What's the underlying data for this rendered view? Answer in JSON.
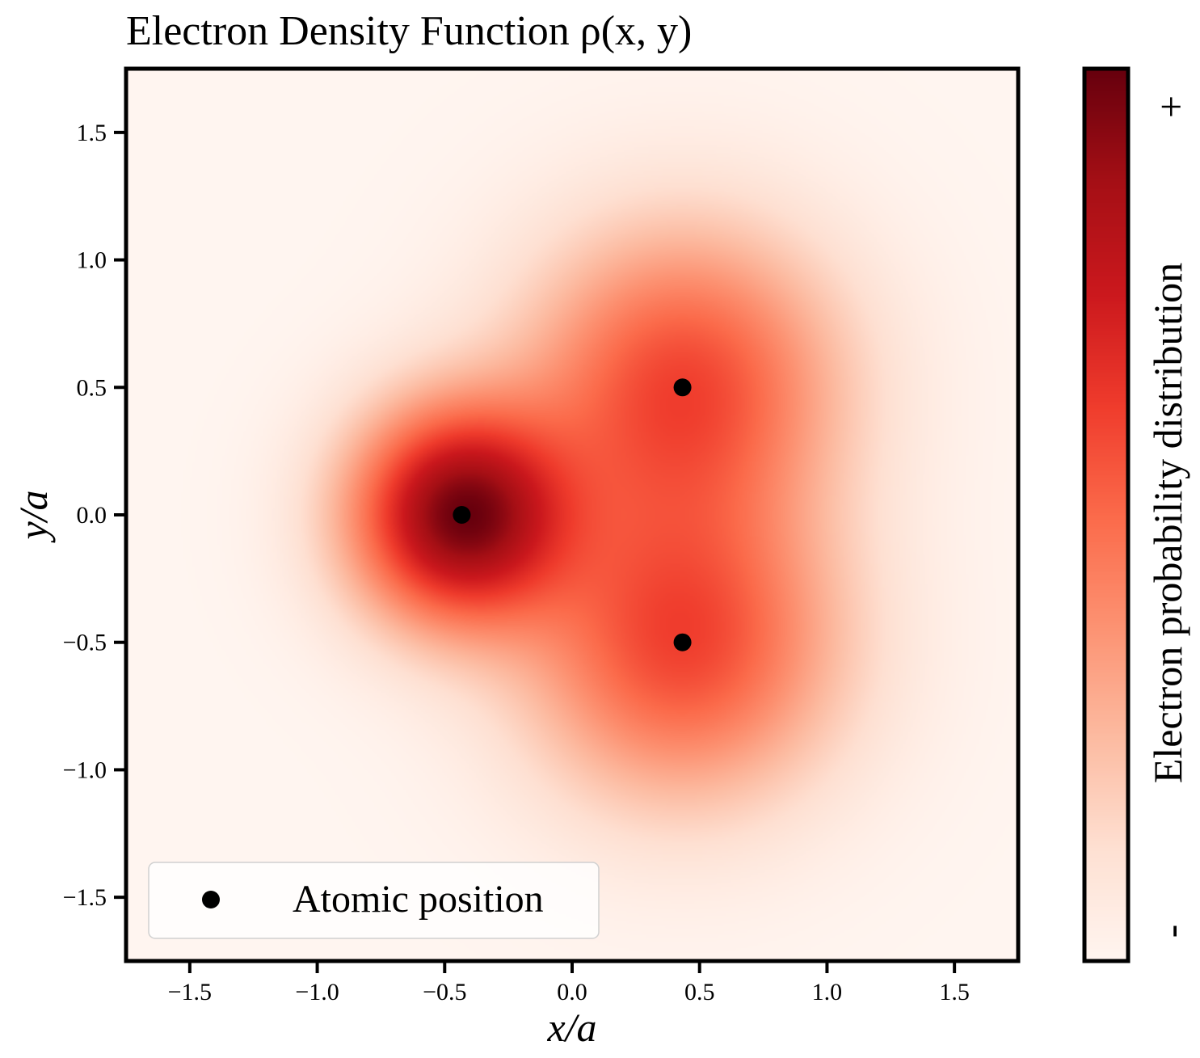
{
  "chart_data": {
    "type": "heatmap",
    "title": "Electron Density Function  ρ(x, y)",
    "xlabel": "x/a",
    "ylabel": "y/a",
    "xlim": [
      -1.75,
      1.75
    ],
    "ylim": [
      -1.75,
      1.75
    ],
    "x_ticks": [
      -1.5,
      -1.0,
      -0.5,
      0.0,
      0.5,
      1.0,
      1.5
    ],
    "x_tick_labels": [
      "−1.5",
      "−1.0",
      "−0.5",
      "0.0",
      "0.5",
      "1.0",
      "1.5"
    ],
    "y_ticks": [
      1.5,
      1.0,
      0.5,
      0.0,
      -0.5,
      -1.0,
      -1.5
    ],
    "y_tick_labels": [
      "1.5",
      "1.0",
      "0.5",
      "0.0",
      "−0.5",
      "−1.0",
      "−1.5"
    ],
    "colormap": "Reds",
    "colorbar": {
      "label": "Electron probability distribution",
      "max_label": "+",
      "min_label": "-"
    },
    "atoms": {
      "name": "Atomic position",
      "x": [
        -0.433,
        0.433,
        0.433
      ],
      "y": [
        0.0,
        0.5,
        -0.5
      ],
      "color": "#000000"
    },
    "legend": {
      "position": "lower-left",
      "entries": [
        "Atomic position"
      ]
    }
  }
}
